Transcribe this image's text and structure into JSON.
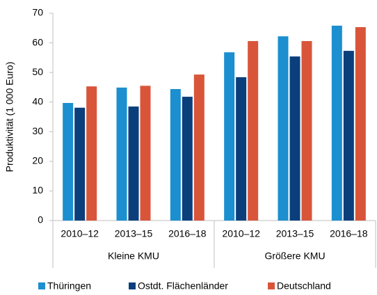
{
  "chart_data": {
    "type": "bar",
    "y_label": "Produktivität (1 000 Euro)",
    "categories": [
      "2010–12",
      "2013–15",
      "2016–18",
      "2010–12",
      "2013–15",
      "2016–18"
    ],
    "group_labels": [
      "Kleine KMU",
      "Größere KMU"
    ],
    "series": [
      {
        "name": "Thüringen",
        "color": "#1b8fcf",
        "values": [
          39.7,
          44.9,
          44.4,
          56.8,
          62.2,
          65.8
        ]
      },
      {
        "name": "Ostdt. Flächenländer",
        "color": "#0b3f7c",
        "values": [
          38.1,
          38.5,
          41.8,
          48.4,
          55.4,
          57.3
        ]
      },
      {
        "name": "Deutschland",
        "color": "#d9553a",
        "values": [
          45.3,
          45.5,
          49.3,
          60.6,
          60.6,
          65.3
        ]
      }
    ],
    "ylim": [
      0,
      70
    ],
    "yticks": [
      0,
      10,
      20,
      30,
      40,
      50,
      60,
      70
    ],
    "grid": false,
    "legend": "bottom"
  }
}
